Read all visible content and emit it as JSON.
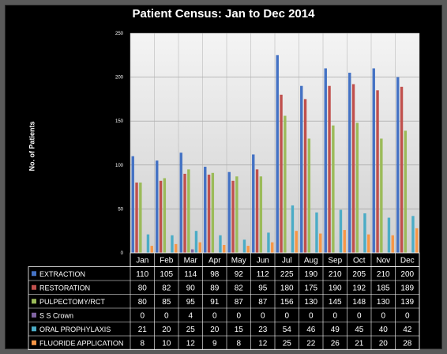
{
  "chart_data": {
    "type": "bar",
    "title": "Patient Census: Jan to Dec 2014",
    "ylabel": "No. of Patients",
    "xlabel": "",
    "ylim": [
      0,
      250
    ],
    "yticks": [
      "0",
      "50",
      "100",
      "150",
      "200",
      "250"
    ],
    "grid": true,
    "legend": "data-table-left",
    "categories": [
      "Jan",
      "Feb",
      "Mar",
      "Apr",
      "May",
      "Jun",
      "Jul",
      "Aug",
      "Sep",
      "Oct",
      "Nov",
      "Dec"
    ],
    "series": [
      {
        "name": "EXTRACTION",
        "color": "#4472c4",
        "values": [
          110,
          105,
          114,
          98,
          92,
          112,
          225,
          190,
          210,
          205,
          210,
          200
        ]
      },
      {
        "name": "RESTORATION",
        "color": "#c0504d",
        "values": [
          80,
          82,
          90,
          89,
          82,
          95,
          180,
          175,
          190,
          192,
          185,
          189
        ]
      },
      {
        "name": "PULPECTOMY/RCT",
        "color": "#9bbb59",
        "values": [
          80,
          85,
          95,
          91,
          87,
          87,
          156,
          130,
          145,
          148,
          130,
          139
        ]
      },
      {
        "name": "S S Crown",
        "color": "#8064a2",
        "values": [
          0,
          0,
          4,
          0,
          0,
          0,
          0,
          0,
          0,
          0,
          0,
          0
        ]
      },
      {
        "name": "ORAL PROPHYLAXIS",
        "color": "#4bacc6",
        "values": [
          21,
          20,
          25,
          20,
          15,
          23,
          54,
          46,
          49,
          45,
          40,
          42
        ]
      },
      {
        "name": "FLUORIDE APPLICATION",
        "color": "#f79646",
        "values": [
          8,
          10,
          12,
          9,
          8,
          12,
          25,
          22,
          26,
          21,
          20,
          28
        ]
      }
    ]
  }
}
